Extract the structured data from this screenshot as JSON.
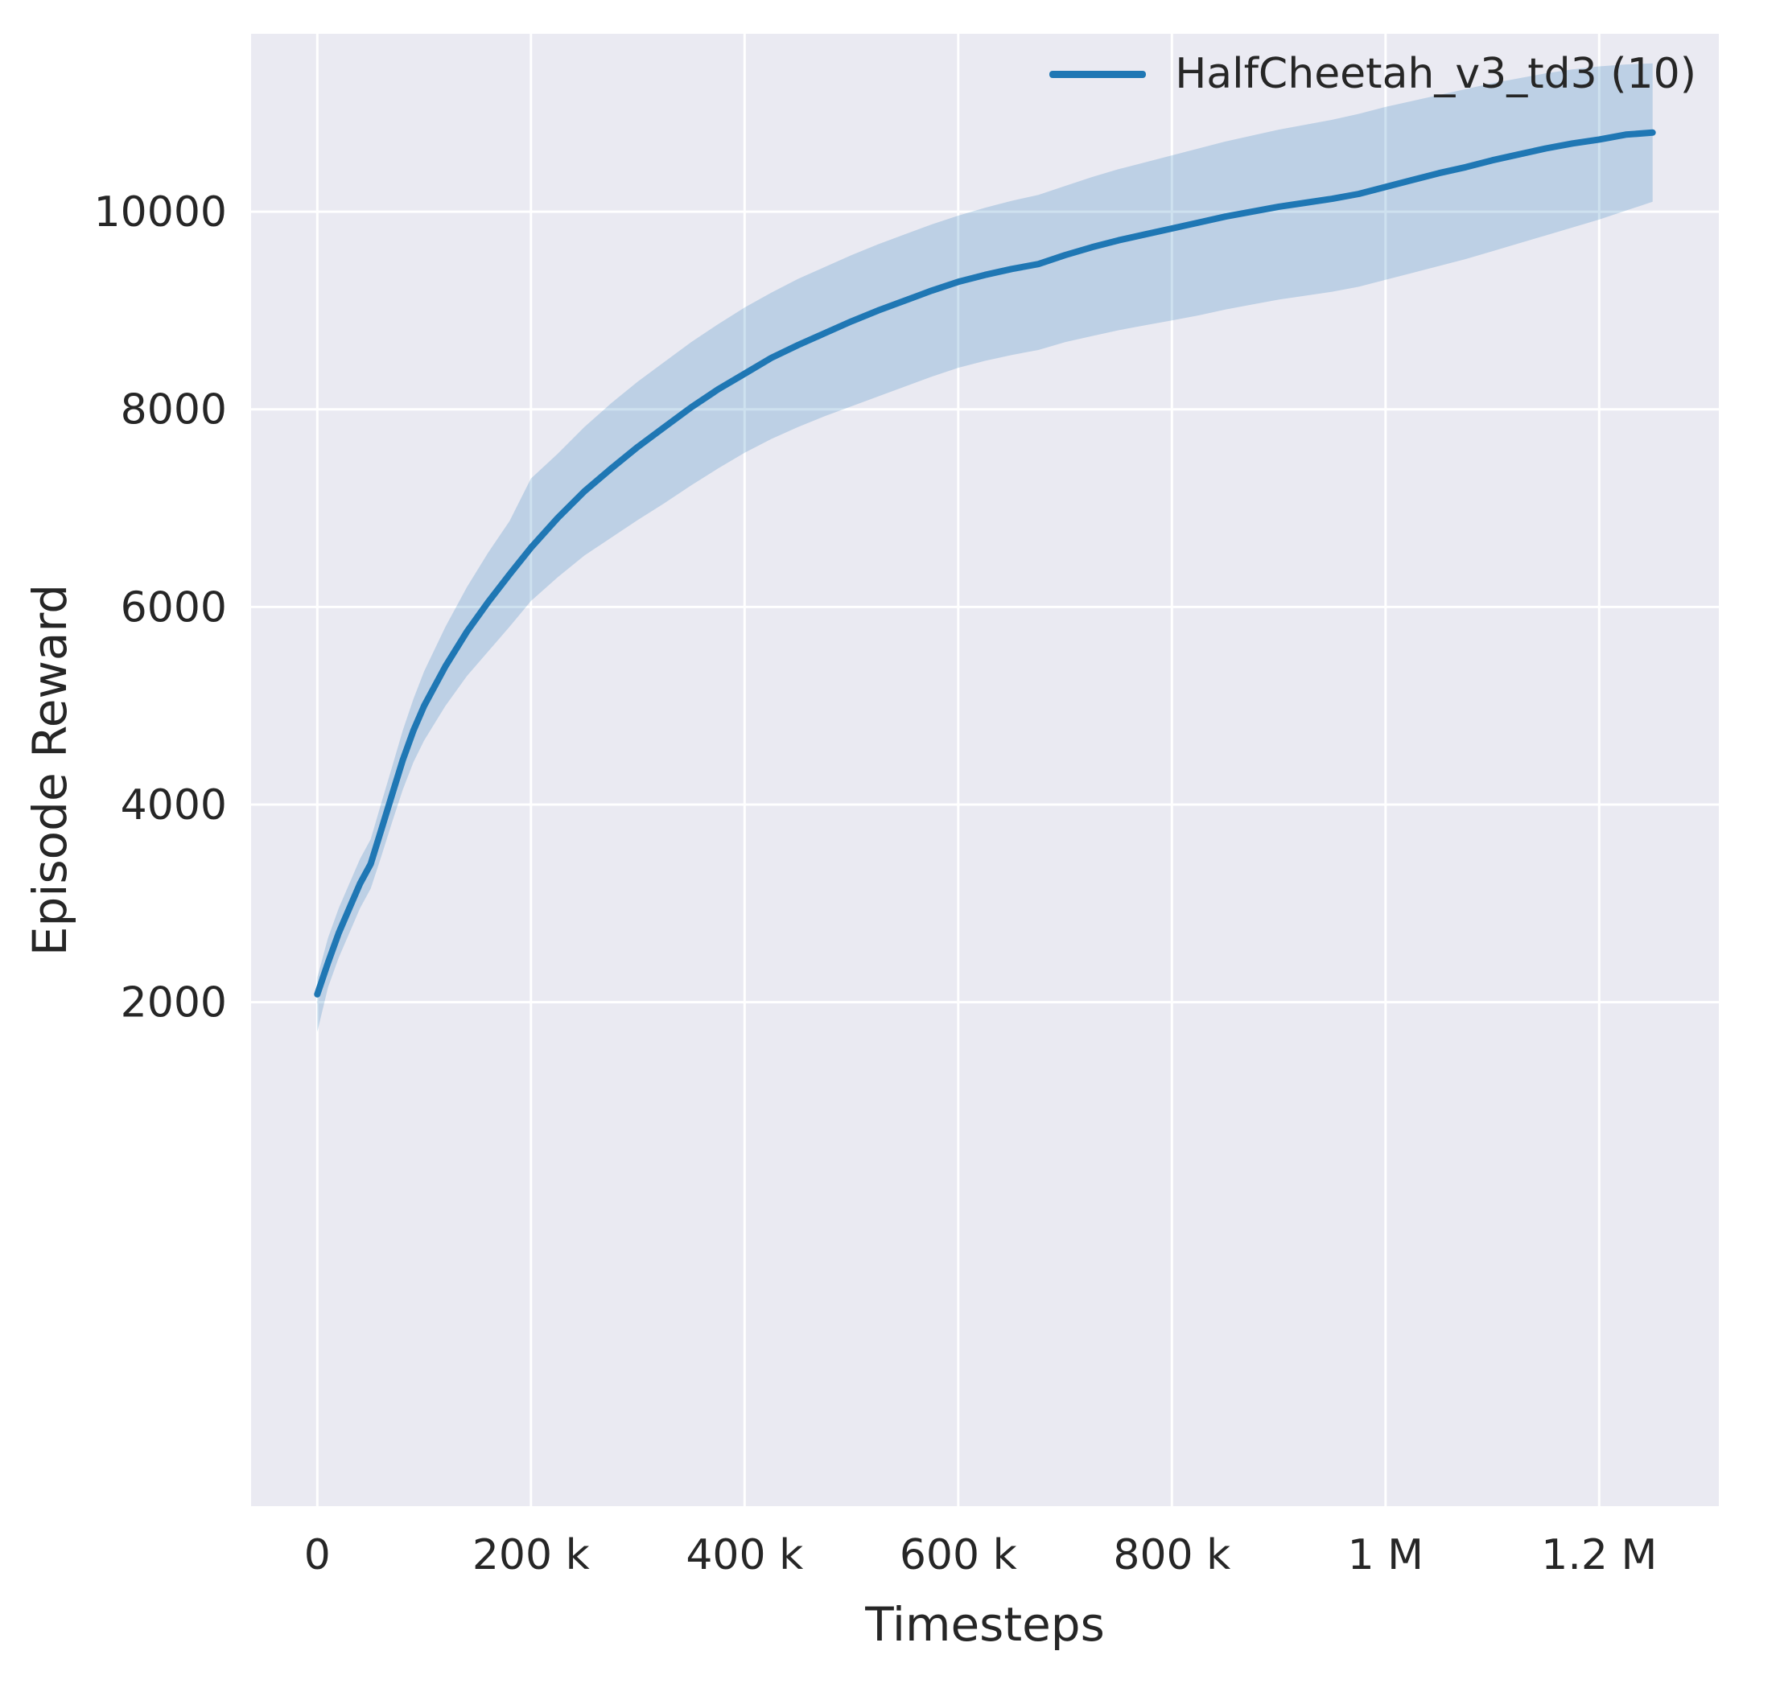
{
  "figure": {
    "xlabel": "Timesteps",
    "ylabel": "Episode Reward"
  },
  "chart_data": {
    "type": "line",
    "title": "",
    "xlabel": "Timesteps",
    "ylabel": "Episode Reward",
    "legend_position": "upper right",
    "grid": true,
    "style": {
      "plot_background": "#eaeaf2",
      "grid_color": "#ffffff",
      "line_color": "#1f77b4",
      "band_color": "#1f77b4",
      "band_opacity": 0.22,
      "tick_color": "#262626"
    },
    "xlim": [
      -62000,
      1312000
    ],
    "ylim": [
      -3100,
      11800
    ],
    "xticks": [
      {
        "value": 0,
        "label": "0"
      },
      {
        "value": 200000,
        "label": "200 k"
      },
      {
        "value": 400000,
        "label": "400 k"
      },
      {
        "value": 600000,
        "label": "600 k"
      },
      {
        "value": 800000,
        "label": "800 k"
      },
      {
        "value": 1000000,
        "label": "1 M"
      },
      {
        "value": 1200000,
        "label": "1.2 M"
      }
    ],
    "yticks": [
      {
        "value": 2000,
        "label": "2000"
      },
      {
        "value": 4000,
        "label": "4000"
      },
      {
        "value": 6000,
        "label": "6000"
      },
      {
        "value": 8000,
        "label": "8000"
      },
      {
        "value": 10000,
        "label": "10000"
      }
    ],
    "series": [
      {
        "name": "HalfCheetah_v3_td3 (10)",
        "x": [
          0,
          10000,
          20000,
          30000,
          40000,
          50000,
          60000,
          70000,
          80000,
          90000,
          100000,
          120000,
          140000,
          160000,
          180000,
          200000,
          225000,
          250000,
          275000,
          300000,
          325000,
          350000,
          375000,
          400000,
          425000,
          450000,
          475000,
          500000,
          525000,
          550000,
          575000,
          600000,
          625000,
          650000,
          675000,
          700000,
          725000,
          750000,
          775000,
          800000,
          825000,
          850000,
          875000,
          900000,
          925000,
          950000,
          975000,
          1000000,
          1025000,
          1050000,
          1075000,
          1100000,
          1125000,
          1150000,
          1175000,
          1200000,
          1225000,
          1250000
        ],
        "mean": [
          2080,
          2400,
          2700,
          2950,
          3200,
          3400,
          3750,
          4100,
          4450,
          4750,
          5000,
          5400,
          5750,
          6050,
          6330,
          6600,
          6900,
          7170,
          7400,
          7620,
          7820,
          8020,
          8200,
          8360,
          8520,
          8650,
          8770,
          8890,
          9000,
          9100,
          9200,
          9290,
          9360,
          9420,
          9470,
          9560,
          9640,
          9710,
          9770,
          9830,
          9890,
          9950,
          10000,
          10050,
          10090,
          10130,
          10180,
          10250,
          10320,
          10390,
          10450,
          10520,
          10580,
          10640,
          10690,
          10730,
          10780,
          10800
        ],
        "lower": [
          1700,
          2150,
          2450,
          2700,
          2950,
          3150,
          3480,
          3820,
          4150,
          4430,
          4650,
          5000,
          5300,
          5550,
          5800,
          6060,
          6300,
          6520,
          6700,
          6880,
          7050,
          7230,
          7400,
          7560,
          7700,
          7820,
          7930,
          8030,
          8130,
          8230,
          8330,
          8420,
          8490,
          8550,
          8600,
          8680,
          8740,
          8800,
          8850,
          8900,
          8950,
          9010,
          9060,
          9110,
          9150,
          9190,
          9240,
          9310,
          9380,
          9450,
          9520,
          9600,
          9680,
          9760,
          9840,
          9920,
          10010,
          10100
        ],
        "upper": [
          2250,
          2650,
          2950,
          3200,
          3450,
          3650,
          4020,
          4380,
          4750,
          5070,
          5350,
          5800,
          6200,
          6550,
          6870,
          7300,
          7550,
          7820,
          8060,
          8280,
          8480,
          8680,
          8860,
          9030,
          9180,
          9320,
          9440,
          9560,
          9670,
          9770,
          9870,
          9960,
          10040,
          10110,
          10170,
          10260,
          10350,
          10430,
          10500,
          10570,
          10640,
          10710,
          10770,
          10830,
          10880,
          10930,
          10990,
          11060,
          11120,
          11180,
          11240,
          11300,
          11350,
          11400,
          11440,
          11470,
          11490,
          11500
        ]
      }
    ]
  }
}
